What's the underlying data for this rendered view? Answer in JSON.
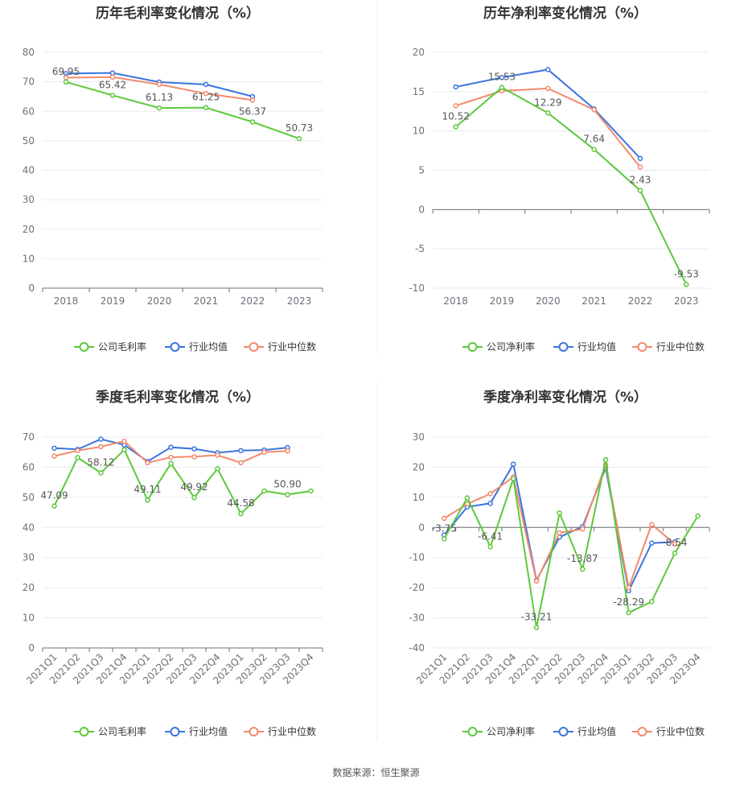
{
  "footer": {
    "source_label": "数据来源：",
    "source_value": "恒生聚源"
  },
  "colors": {
    "company": "#5cc93b",
    "avg": "#3b74e0",
    "median": "#f28a6b"
  },
  "chart_data": [
    {
      "id": "annual_gross",
      "type": "line",
      "title": "历年毛利率变化情况（%）",
      "categories": [
        "2018",
        "2019",
        "2020",
        "2021",
        "2022",
        "2023"
      ],
      "ylim": [
        0,
        80
      ],
      "yticks": [
        0,
        10,
        20,
        30,
        40,
        50,
        60,
        70,
        80
      ],
      "label_rotate": false,
      "series": [
        {
          "name": "公司毛利率",
          "key": "company",
          "values": [
            69.95,
            65.42,
            61.13,
            61.25,
            56.37,
            50.73
          ],
          "labeled": true
        },
        {
          "name": "行业均值",
          "key": "avg",
          "values": [
            72.8,
            73.0,
            69.9,
            69.1,
            65.0,
            null
          ],
          "labeled": false
        },
        {
          "name": "行业中位数",
          "key": "median",
          "values": [
            71.4,
            71.6,
            69.1,
            66.0,
            63.8,
            null
          ],
          "labeled": false
        }
      ],
      "labels": [
        "69.95",
        "65.42",
        "61.13",
        "61.25",
        "56.37",
        "50.73"
      ]
    },
    {
      "id": "annual_net",
      "type": "line",
      "title": "历年净利率变化情况（%）",
      "categories": [
        "2018",
        "2019",
        "2020",
        "2021",
        "2022",
        "2023"
      ],
      "ylim": [
        -10,
        20
      ],
      "yticks": [
        -10,
        -5,
        0,
        5,
        10,
        15,
        20
      ],
      "label_rotate": false,
      "series": [
        {
          "name": "公司净利率",
          "key": "company",
          "values": [
            10.52,
            15.53,
            12.29,
            7.64,
            2.43,
            -9.53
          ],
          "labeled": true
        },
        {
          "name": "行业均值",
          "key": "avg",
          "values": [
            15.6,
            16.8,
            17.8,
            12.8,
            6.5,
            null
          ],
          "labeled": false
        },
        {
          "name": "行业中位数",
          "key": "median",
          "values": [
            13.2,
            15.1,
            15.4,
            12.7,
            5.4,
            null
          ],
          "labeled": false
        }
      ],
      "labels": [
        "10.52",
        "15.53",
        "12.29",
        "7.64",
        "2.43",
        "-9.53"
      ]
    },
    {
      "id": "quarterly_gross",
      "type": "line",
      "title": "季度毛利率变化情况（%）",
      "categories": [
        "2021Q1",
        "2021Q2",
        "2021Q3",
        "2021Q4",
        "2022Q1",
        "2022Q2",
        "2022Q3",
        "2022Q4",
        "2023Q1",
        "2023Q2",
        "2023Q3",
        "2023Q4"
      ],
      "ylim": [
        0,
        70
      ],
      "yticks": [
        0,
        10,
        20,
        30,
        40,
        50,
        60,
        70
      ],
      "label_rotate": true,
      "series": [
        {
          "name": "公司毛利率",
          "key": "company",
          "values": [
            47.09,
            63.2,
            58.12,
            65.8,
            49.11,
            61.2,
            49.92,
            59.5,
            44.58,
            52.1,
            50.9,
            52.1
          ],
          "labeled": true
        },
        {
          "name": "行业均值",
          "key": "avg",
          "values": [
            66.3,
            65.9,
            69.3,
            67.4,
            61.9,
            66.6,
            66.1,
            64.8,
            65.5,
            65.7,
            66.5,
            null
          ],
          "labeled": false
        },
        {
          "name": "行业中位数",
          "key": "median",
          "values": [
            63.7,
            65.5,
            66.8,
            68.6,
            61.5,
            63.3,
            63.5,
            64.0,
            61.5,
            65.0,
            65.4,
            null
          ],
          "labeled": false
        }
      ],
      "labels": [
        "47.09",
        null,
        "58.12",
        null,
        "49.11",
        null,
        "49.92",
        null,
        "44.58",
        null,
        "50.90",
        null
      ]
    },
    {
      "id": "quarterly_net",
      "type": "line",
      "title": "季度净利率变化情况（%）",
      "categories": [
        "2021Q1",
        "2021Q2",
        "2021Q3",
        "2021Q4",
        "2022Q1",
        "2022Q2",
        "2022Q3",
        "2022Q4",
        "2023Q1",
        "2023Q2",
        "2023Q3",
        "2023Q4"
      ],
      "ylim": [
        -40,
        30
      ],
      "yticks": [
        -40,
        -30,
        -20,
        -10,
        0,
        10,
        20,
        30
      ],
      "label_rotate": true,
      "series": [
        {
          "name": "公司净利率",
          "key": "company",
          "values": [
            -3.75,
            9.8,
            -6.41,
            16.2,
            -33.21,
            4.8,
            -13.87,
            22.5,
            -28.29,
            -24.6,
            -8.54,
            3.8
          ],
          "labeled": true
        },
        {
          "name": "行业均值",
          "key": "avg",
          "values": [
            -2.5,
            6.8,
            8.0,
            21.0,
            -17.5,
            -3.2,
            0.3,
            19.8,
            -21.0,
            -5.2,
            -4.8,
            null
          ],
          "labeled": false
        },
        {
          "name": "行业中位数",
          "key": "median",
          "values": [
            3.0,
            7.8,
            11.2,
            16.8,
            -17.8,
            -1.8,
            -0.5,
            20.8,
            -20.0,
            1.0,
            -5.5,
            null
          ],
          "labeled": false
        }
      ],
      "labels": [
        "-3.75",
        null,
        "-6.41",
        null,
        "-33.21",
        null,
        "-13.87",
        null,
        "-28.29",
        null,
        "-8.54",
        null
      ]
    }
  ]
}
